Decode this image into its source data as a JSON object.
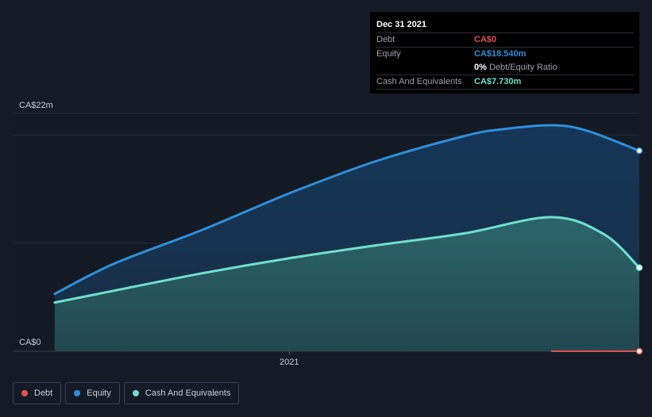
{
  "tooltip": {
    "date": "Dec 31 2021",
    "rows": [
      {
        "label": "Debt",
        "value": "CA$0",
        "color": "#e05252"
      },
      {
        "label": "Equity",
        "value": "CA$18.540m",
        "color": "#2d8fdb"
      },
      {
        "label": "Cash And Equivalents",
        "value": "CA$7.730m",
        "color": "#6fe0d0"
      }
    ],
    "ratio_value": "0%",
    "ratio_label": "Debt/Equity Ratio"
  },
  "legend": [
    {
      "label": "Debt",
      "color": "#e05252"
    },
    {
      "label": "Equity",
      "color": "#2d8fdb"
    },
    {
      "label": "Cash And Equivalents",
      "color": "#6fe0d0"
    }
  ],
  "chart_data": {
    "type": "area",
    "ylim": [
      0,
      22
    ],
    "y_tick_labels": [
      "CA$22m",
      "CA$0"
    ],
    "x_tick_labels": [
      {
        "label": "2021",
        "x": 2021.0
      }
    ],
    "xlim": [
      2020.21,
      2022.0
    ],
    "grid": true,
    "legend_placement": "bottom-left",
    "series": [
      {
        "name": "Equity",
        "color": "#2d8fdb",
        "x": [
          2020.33,
          2020.5,
          2020.75,
          2021.0,
          2021.25,
          2021.5,
          2021.6,
          2021.75,
          2021.85,
          2022.0
        ],
        "y": [
          5.3,
          8.1,
          11.2,
          14.6,
          17.6,
          19.9,
          20.5,
          20.9,
          20.4,
          18.54
        ]
      },
      {
        "name": "Cash And Equivalents",
        "color": "#6fe0d0",
        "x": [
          2020.33,
          2020.5,
          2020.75,
          2021.0,
          2021.25,
          2021.5,
          2021.75,
          2021.9,
          2022.0
        ],
        "y": [
          4.5,
          5.6,
          7.2,
          8.6,
          9.8,
          10.9,
          12.4,
          10.8,
          7.73
        ]
      },
      {
        "name": "Debt",
        "color": "#e05252",
        "x": [
          2021.75,
          2022.0
        ],
        "y": [
          0,
          0
        ]
      }
    ]
  }
}
